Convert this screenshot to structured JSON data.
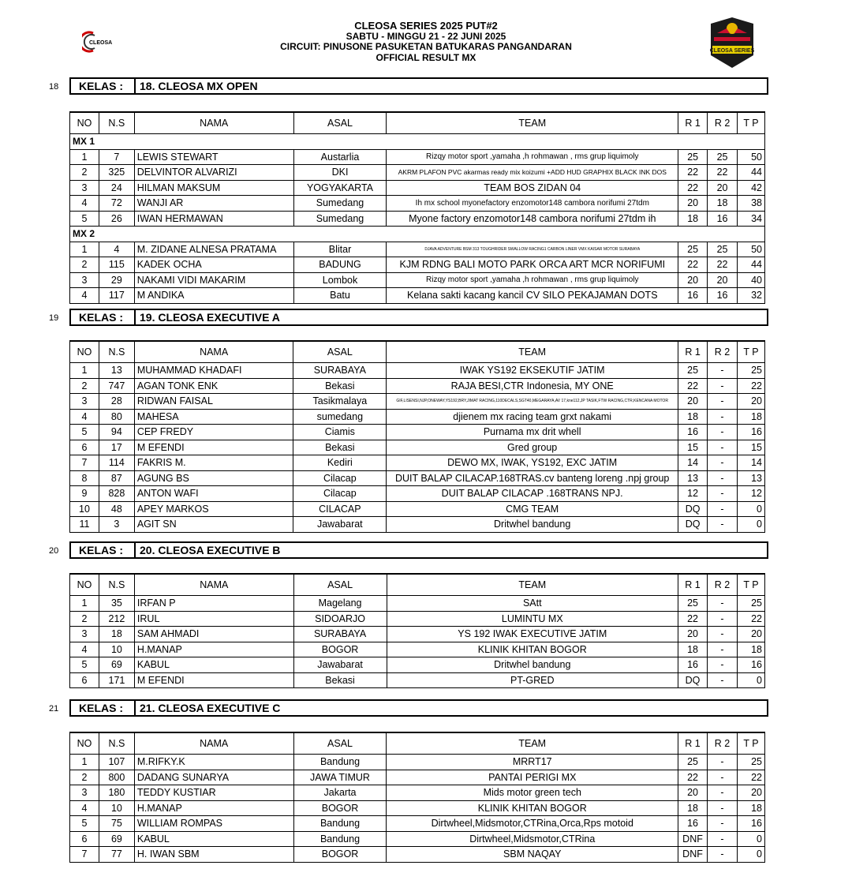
{
  "header": {
    "title": "CLEOSA SERIES 2025 PUT#2",
    "date": "SABTU - MINGGU 21 - 22 JUNI 2025",
    "circuit": "CIRCUIT: PINUSONE PASUKETAN BATUKARAS PANGANDARAN",
    "subtitle": "OFFICIAL RESULT MX"
  },
  "logos": {
    "left": "CLEOSA",
    "right": "CLEOSA SERIES"
  },
  "columns": [
    "NO",
    "N.S",
    "NAMA",
    "ASAL",
    "TEAM",
    "R 1",
    "R 2",
    "T P"
  ],
  "sections": [
    {
      "num": "18",
      "kelas_label": "KELAS :",
      "kelas": "18. CLEOSA MX OPEN",
      "groups": [
        {
          "name": "MX 1",
          "rows": [
            [
              "1",
              "7",
              "LEWIS STEWART",
              "Austarlia",
              "Rizqy motor sport ,yamaha ,h rohmawan , rms grup liquimoly",
              "25",
              "25",
              "50"
            ],
            [
              "2",
              "325",
              "DELVINTOR ALVARIZI",
              "DKI",
              "AKRM PLAFON PVC akarmas ready mix koizumi +ADD HUD GRAPHIX BLACK INK DOS",
              "22",
              "22",
              "44"
            ],
            [
              "3",
              "24",
              "HILMAN MAKSUM",
              "YOGYAKARTA",
              "TEAM BOS ZIDAN 04",
              "22",
              "20",
              "42"
            ],
            [
              "4",
              "72",
              "WANJI AR",
              "Sumedang",
              "Ih mx school myonefactory enzomotor148 cambora norifumi 27tdm",
              "20",
              "18",
              "38"
            ],
            [
              "5",
              "26",
              "IWAN HERMAWAN",
              "Sumedang",
              "Myone factory enzomotor148 cambora norifumi 27tdm ih",
              "18",
              "16",
              "34"
            ]
          ]
        },
        {
          "name": "MX 2",
          "rows": [
            [
              "1",
              "4",
              "M. ZIDANE ALNESA PRATAMA",
              "Blitar",
              "DJAVA ADVENTURE BSM 313 TOUGHRIDER SWALLOW RACING1 CARBON LINER VMX KAISAR MOTOR SURABAYA",
              "25",
              "25",
              "50"
            ],
            [
              "2",
              "115",
              "KADEK OCHA",
              "BADUNG",
              "KJM RDNG BALI MOTO PARK ORCA ART MCR NORIFUMI",
              "22",
              "22",
              "44"
            ],
            [
              "3",
              "29",
              "NAKAMI VIDI MAKARIM",
              "Lombok",
              "Rizqy motor sport ,yamaha ,h rohmawan , rms grup liquimoly",
              "20",
              "20",
              "40"
            ],
            [
              "4",
              "117",
              "M ANDIKA",
              "Batu",
              "Kelana sakti kacang kancil CV SILO PEKAJAMAN DOTS",
              "16",
              "16",
              "32"
            ]
          ]
        }
      ]
    },
    {
      "num": "19",
      "kelas_label": "KELAS :",
      "kelas": "19. CLEOSA EXECUTIVE A",
      "groups": [
        {
          "rows": [
            [
              "1",
              "13",
              "MUHAMMAD KHADAFI",
              "SURABAYA",
              "IWAK YS192 EKSEKUTIF JATIM",
              "25",
              "-",
              "25"
            ],
            [
              "2",
              "747",
              "AGAN TONK ENK",
              "Bekasi",
              "RAJA BESI,CTR Indonesia, MY ONE",
              "22",
              "-",
              "22"
            ],
            [
              "3",
              "28",
              "RIDWAN FAISAL",
              "Tasikmalaya",
              "GIF,LISENSI,NJP,ONEWAY,YS192,BRY,JIMAT RACING,110DECALS,SGT40,MEGARAYA,AV 17,kne112,JP TASIK,FTW RACING,CTR,KENCANA MOTOR",
              "20",
              "-",
              "20"
            ],
            [
              "4",
              "80",
              "MAHESA",
              "sumedang",
              "djienem mx racing team grxt nakami",
              "18",
              "-",
              "18"
            ],
            [
              "5",
              "94",
              "CEP FREDY",
              "Ciamis",
              "Purnama mx drit whell",
              "16",
              "-",
              "16"
            ],
            [
              "6",
              "17",
              "M EFENDI",
              "Bekasi",
              "Gred group",
              "15",
              "-",
              "15"
            ],
            [
              "7",
              "114",
              "FAKRIS M.",
              "Kediri",
              "DEWO MX, IWAK, YS192, EXC JATIM",
              "14",
              "-",
              "14"
            ],
            [
              "8",
              "87",
              "AGUNG BS",
              "Cilacap",
              "DUIT BALAP CILACAP.168TRAS.cv banteng loreng .npj group",
              "13",
              "-",
              "13"
            ],
            [
              "9",
              "828",
              "ANTON WAFI",
              "Cilacap",
              "DUIT BALAP CILACAP .168TRANS NPJ.",
              "12",
              "-",
              "12"
            ],
            [
              "10",
              "48",
              "APEY MARKOS",
              "CILACAP",
              "CMG TEAM",
              "DQ",
              "-",
              "0"
            ],
            [
              "11",
              "3",
              "AGIT SN",
              "Jawabarat",
              "Dritwhel bandung",
              "DQ",
              "-",
              "0"
            ]
          ]
        }
      ]
    },
    {
      "num": "20",
      "kelas_label": "KELAS :",
      "kelas": "20. CLEOSA EXECUTIVE B",
      "groups": [
        {
          "rows": [
            [
              "1",
              "35",
              "IRFAN P",
              "Magelang",
              "SAtt",
              "25",
              "-",
              "25"
            ],
            [
              "2",
              "212",
              "IRUL",
              "SIDOARJO",
              "LUMINTU MX",
              "22",
              "-",
              "22"
            ],
            [
              "3",
              "18",
              "SAM AHMADI",
              "SURABAYA",
              "YS 192 IWAK EXECUTIVE JATIM",
              "20",
              "-",
              "20"
            ],
            [
              "4",
              "10",
              "H.MANAP",
              "BOGOR",
              "KLINIK KHITAN BOGOR",
              "18",
              "-",
              "18"
            ],
            [
              "5",
              "69",
              "KABUL",
              "Jawabarat",
              "Dritwhel bandung",
              "16",
              "-",
              "16"
            ],
            [
              "6",
              "171",
              "M EFENDI",
              "Bekasi",
              "PT-GRED",
              "DQ",
              "-",
              "0"
            ]
          ]
        }
      ]
    },
    {
      "num": "21",
      "kelas_label": "KELAS :",
      "kelas": "21. CLEOSA EXECUTIVE C",
      "groups": [
        {
          "rows": [
            [
              "1",
              "107",
              "M.RIFKY.K",
              "Bandung",
              "MRRT17",
              "25",
              "-",
              "25"
            ],
            [
              "2",
              "800",
              "DADANG SUNARYA",
              "JAWA TIMUR",
              "PANTAI PERIGI MX",
              "22",
              "-",
              "22"
            ],
            [
              "3",
              "180",
              "TEDDY KUSTIAR",
              "Jakarta",
              "Mids motor green tech",
              "20",
              "-",
              "20"
            ],
            [
              "4",
              "10",
              "H.MANAP",
              "BOGOR",
              "KLINIK KHITAN BOGOR",
              "18",
              "-",
              "18"
            ],
            [
              "5",
              "75",
              "WILLIAM ROMPAS",
              "Bandung",
              "Dirtwheel,Midsmotor,CTRina,Orca,Rps motoid",
              "16",
              "-",
              "16"
            ],
            [
              "6",
              "69",
              "KABUL",
              "Bandung",
              "Dirtwheel,Midsmotor,CTRina",
              "DNF",
              "-",
              "0"
            ],
            [
              "7",
              "77",
              "H. IWAN SBM",
              "BOGOR",
              "SBM NAQAY",
              "DNF",
              "-",
              "0"
            ]
          ]
        }
      ]
    }
  ]
}
